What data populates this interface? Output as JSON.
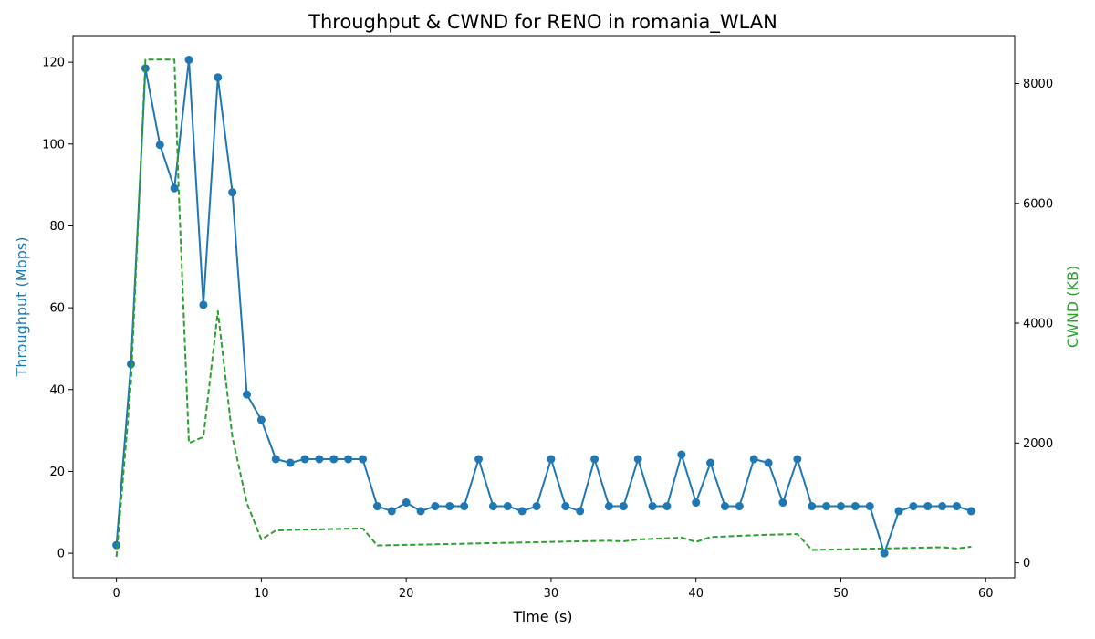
{
  "chart_data": {
    "type": "line",
    "title": "Throughput & CWND for RENO in romania_WLAN",
    "xlabel": "Time (s)",
    "ylabel_left": "Throughput (Mbps)",
    "ylabel_right": "CWND (KB)",
    "xlim": [
      -3,
      62
    ],
    "ylim_left": [
      -6,
      126.5
    ],
    "ylim_right": [
      -250,
      8800
    ],
    "x_ticks": [
      0,
      10,
      20,
      30,
      40,
      50,
      60
    ],
    "y_left_ticks": [
      0,
      20,
      40,
      60,
      80,
      100,
      120
    ],
    "y_right_ticks": [
      0,
      2000,
      4000,
      6000,
      8000
    ],
    "grid": false,
    "colors": {
      "throughput": "#1f77b4",
      "cwnd": "#2ca02c"
    },
    "series": [
      {
        "axis": "left",
        "style": "solid-with-markers",
        "x": [
          0,
          1,
          2,
          3,
          4,
          5,
          6,
          7,
          8,
          9,
          10,
          11,
          12,
          13,
          14,
          15,
          16,
          17,
          18,
          19,
          20,
          21,
          22,
          23,
          24,
          25,
          26,
          27,
          28,
          29,
          30,
          31,
          32,
          33,
          34,
          35,
          36,
          37,
          38,
          39,
          40,
          41,
          42,
          43,
          44,
          45,
          46,
          47,
          48,
          49,
          50,
          51,
          52,
          53,
          54,
          55,
          56,
          57,
          58,
          59
        ],
        "values": [
          2,
          46.2,
          118.5,
          99.8,
          89.2,
          120.6,
          60.7,
          116.3,
          88.2,
          38.8,
          32.6,
          23,
          22.1,
          23,
          23,
          23,
          23,
          23,
          11.5,
          10.3,
          12.4,
          10.3,
          11.5,
          11.5,
          11.5,
          23,
          11.5,
          11.5,
          10.3,
          11.5,
          23,
          11.5,
          10.3,
          23,
          11.5,
          11.5,
          23,
          11.5,
          11.5,
          24.1,
          12.4,
          22.1,
          11.5,
          11.5,
          23,
          22.1,
          12.4,
          23,
          11.5,
          11.5,
          11.5,
          11.5,
          11.5,
          0,
          10.3,
          11.5,
          11.5,
          11.5,
          11.5,
          10.3
        ]
      },
      {
        "axis": "right",
        "style": "dashed",
        "x": [
          0,
          1,
          2,
          3,
          4,
          4.3,
          5,
          6,
          7,
          8,
          9,
          10,
          11,
          12,
          13,
          14,
          15,
          16,
          17,
          18,
          19,
          20,
          21,
          22,
          23,
          24,
          25,
          26,
          27,
          28,
          29,
          30,
          31,
          32,
          33,
          34,
          35,
          36,
          37,
          38,
          39,
          40,
          41,
          42,
          43,
          44,
          45,
          46,
          47,
          48,
          49,
          50,
          51,
          52,
          53,
          54,
          55,
          56,
          57,
          58,
          59
        ],
        "values": [
          100,
          3000,
          8400,
          8400,
          8400,
          6200,
          2000,
          2100,
          4200,
          2100,
          1000,
          390,
          540,
          550,
          555,
          560,
          565,
          570,
          575,
          290,
          295,
          300,
          305,
          310,
          315,
          320,
          325,
          330,
          335,
          340,
          345,
          350,
          355,
          360,
          365,
          370,
          360,
          390,
          400,
          410,
          420,
          350,
          430,
          440,
          450,
          460,
          470,
          475,
          480,
          215,
          220,
          225,
          230,
          235,
          240,
          245,
          250,
          255,
          260,
          240,
          270
        ]
      }
    ]
  }
}
